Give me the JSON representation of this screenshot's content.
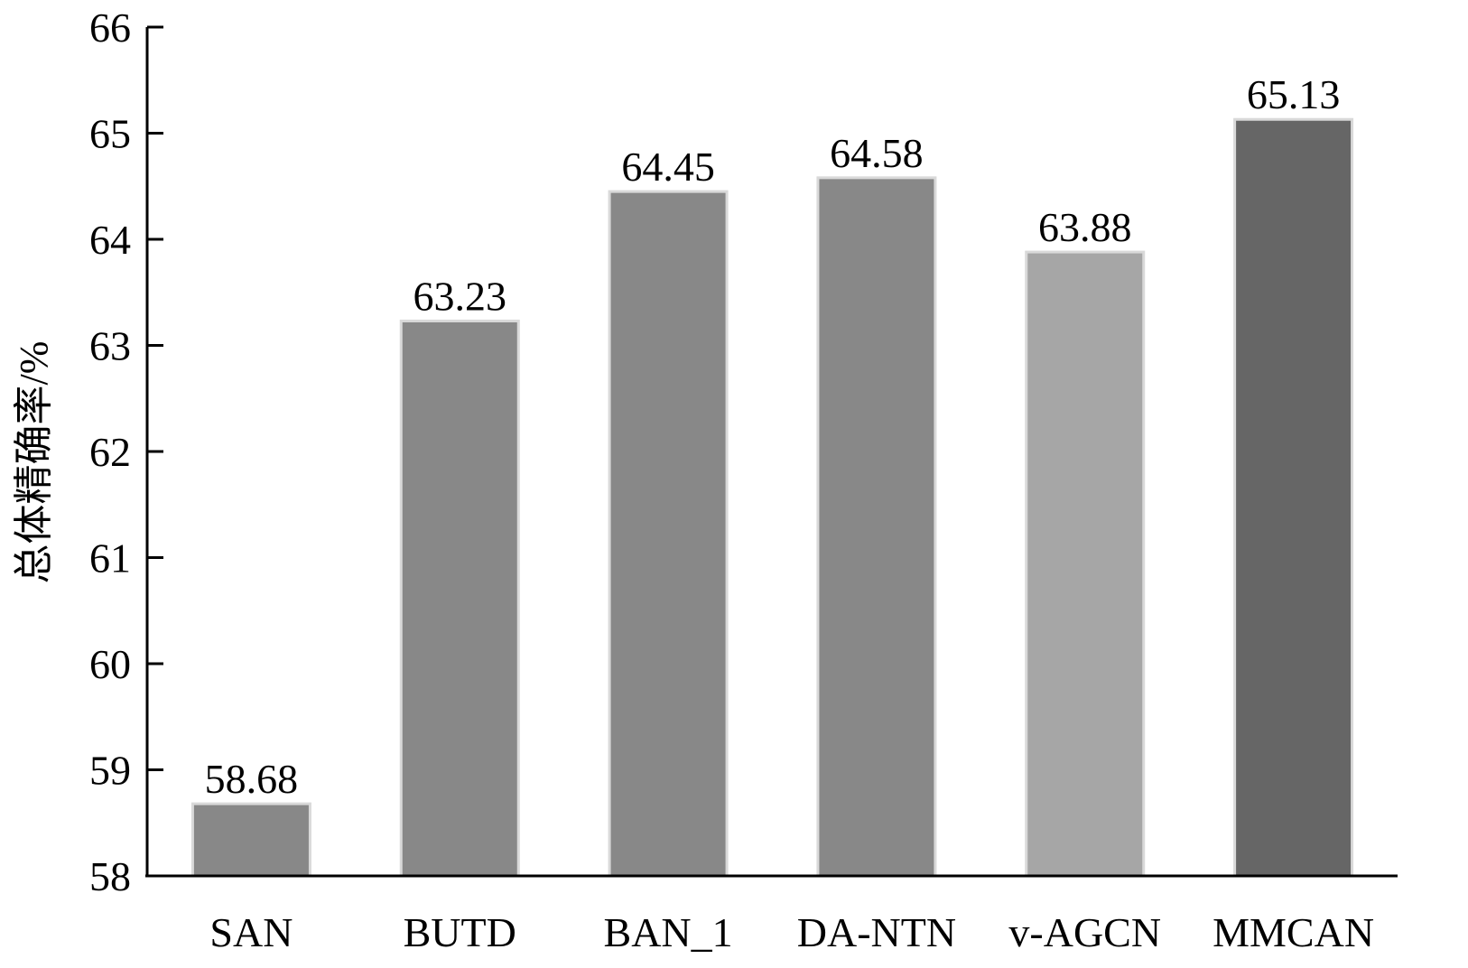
{
  "chart_data": {
    "type": "bar",
    "title": "",
    "xlabel": "",
    "ylabel": "总体精确率/%",
    "categories": [
      "SAN",
      "BUTD",
      "BAN_1",
      "DA-NTN",
      "v-AGCN",
      "MMCAN"
    ],
    "values": [
      58.68,
      63.23,
      64.45,
      64.58,
      63.88,
      65.13
    ],
    "data_labels": [
      "58.68",
      "63.23",
      "64.45",
      "64.58",
      "63.88",
      "65.13"
    ],
    "ylim": [
      58,
      66
    ],
    "yticks": [
      58,
      59,
      60,
      61,
      62,
      63,
      64,
      65,
      66
    ],
    "grid": false,
    "legend": "none",
    "bar_colors": [
      "#888888",
      "#888888",
      "#888888",
      "#888888",
      "#a6a6a6",
      "#666666"
    ]
  }
}
